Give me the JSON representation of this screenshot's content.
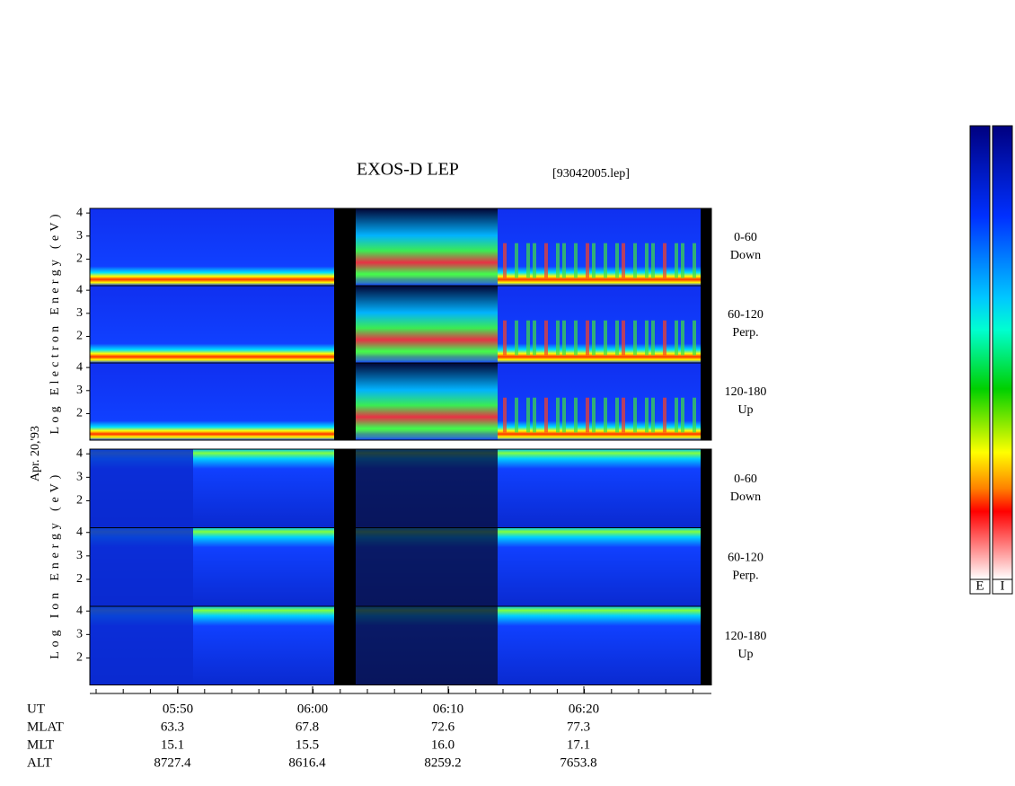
{
  "chart_data": {
    "type": "spectrogram",
    "title": "EXOS-D LEP",
    "subtitle": "[93042005.lep]",
    "date_label": "Apr. 20,'93",
    "groups": [
      {
        "ylabel": "Log Electron Energy (eV)",
        "panels": [
          {
            "pitch": "0-60",
            "direction": "Down"
          },
          {
            "pitch": "60-120",
            "direction": "Perp."
          },
          {
            "pitch": "120-180",
            "direction": "Up"
          }
        ]
      },
      {
        "ylabel": "Log Ion Energy (eV)",
        "panels": [
          {
            "pitch": "0-60",
            "direction": "Down"
          },
          {
            "pitch": "60-120",
            "direction": "Perp."
          },
          {
            "pitch": "120-180",
            "direction": "Up"
          }
        ]
      }
    ],
    "ylim": [
      0.85,
      4.2
    ],
    "yticks": [
      2,
      3,
      4
    ],
    "time_label": "UT",
    "x_labels": [
      "05:50",
      "06:00",
      "06:10",
      "06:20"
    ],
    "ephemeris": [
      {
        "name": "MLAT",
        "values": [
          "63.3",
          "67.8",
          "72.6",
          "77.3"
        ]
      },
      {
        "name": "MLT",
        "values": [
          "15.1",
          "15.5",
          "16.0",
          "17.1"
        ]
      },
      {
        "name": "ALT",
        "values": [
          "8727.4",
          "8616.4",
          "8259.2",
          "7653.8"
        ]
      }
    ],
    "colorbars": [
      "E",
      "I"
    ]
  }
}
